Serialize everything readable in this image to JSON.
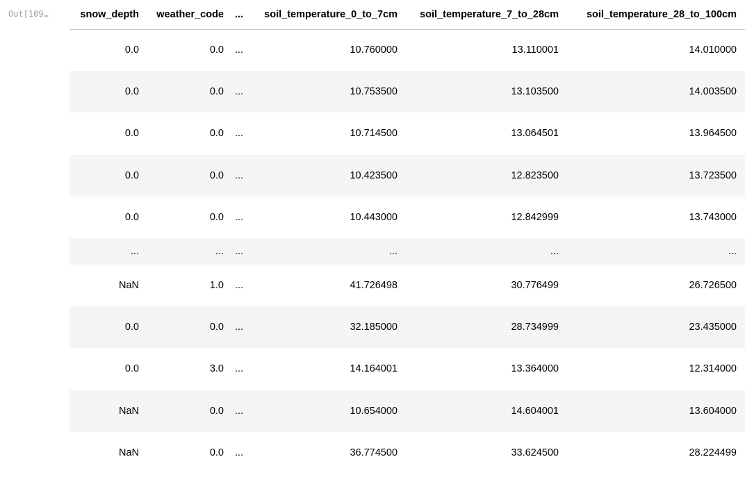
{
  "prompt": "Out[109…",
  "columns": [
    "snow_depth",
    "weather_code",
    "...",
    "soil_temperature_0_to_7cm",
    "soil_temperature_7_to_28cm",
    "soil_temperature_28_to_100cm"
  ],
  "rows": [
    [
      "0.0",
      "0.0",
      "...",
      "10.760000",
      "13.110001",
      "14.010000"
    ],
    [
      "0.0",
      "0.0",
      "...",
      "10.753500",
      "13.103500",
      "14.003500"
    ],
    [
      "0.0",
      "0.0",
      "...",
      "10.714500",
      "13.064501",
      "13.964500"
    ],
    [
      "0.0",
      "0.0",
      "...",
      "10.423500",
      "12.823500",
      "13.723500"
    ],
    [
      "0.0",
      "0.0",
      "...",
      "10.443000",
      "12.842999",
      "13.743000"
    ],
    [
      "...",
      "...",
      "...",
      "...",
      "...",
      "..."
    ],
    [
      "NaN",
      "1.0",
      "...",
      "41.726498",
      "30.776499",
      "26.726500"
    ],
    [
      "0.0",
      "0.0",
      "...",
      "32.185000",
      "28.734999",
      "23.435000"
    ],
    [
      "0.0",
      "3.0",
      "...",
      "14.164001",
      "13.364000",
      "12.314000"
    ],
    [
      "NaN",
      "0.0",
      "...",
      "10.654000",
      "14.604001",
      "13.604000"
    ],
    [
      "NaN",
      "0.0",
      "...",
      "36.774500",
      "33.624500",
      "28.224499"
    ]
  ]
}
